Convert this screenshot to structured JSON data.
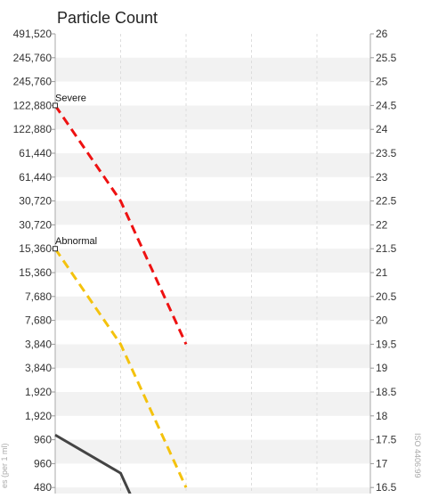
{
  "chart_data": {
    "type": "line",
    "title": "Particle Count",
    "grid": true,
    "y_left_ticks": [
      "491,520",
      "245,760",
      "245,760",
      "122,880",
      "122,880",
      "61,440",
      "61,440",
      "30,720",
      "30,720",
      "15,360",
      "15,360",
      "7,680",
      "7,680",
      "3,840",
      "3,840",
      "1,920",
      "1,920",
      "960",
      "960",
      "480"
    ],
    "y_right_ticks": [
      "26",
      "25.5",
      "25",
      "24.5",
      "24",
      "23.5",
      "23",
      "22.5",
      "22",
      "21.5",
      "21",
      "20.5",
      "20",
      "19.5",
      "19",
      "18.5",
      "18",
      "17.5",
      "17",
      "16.5"
    ],
    "y_right_range": [
      16.5,
      26
    ],
    "ylabel_left": "es (per 1 ml)",
    "ylabel_right": "ISO 4406:99",
    "series": [
      {
        "name": "Severe",
        "color": "#ee1111",
        "style": "dashed",
        "label_shown": true,
        "points": [
          {
            "x": 0,
            "y": 24.5
          },
          {
            "x": 1,
            "y": 22.5
          },
          {
            "x": 2,
            "y": 19.5
          }
        ]
      },
      {
        "name": "Abnormal",
        "color": "#f4c20d",
        "style": "dashed",
        "label_shown": true,
        "points": [
          {
            "x": 0,
            "y": 21.5
          },
          {
            "x": 1,
            "y": 19.5
          },
          {
            "x": 2,
            "y": 16.5
          }
        ]
      },
      {
        "name": "",
        "color": "#444444",
        "style": "solid",
        "label_shown": false,
        "points": [
          {
            "x": 0,
            "y": 17.6
          },
          {
            "x": 1,
            "y": 16.8
          },
          {
            "x": 1.2,
            "y": 16.2
          }
        ]
      }
    ]
  }
}
